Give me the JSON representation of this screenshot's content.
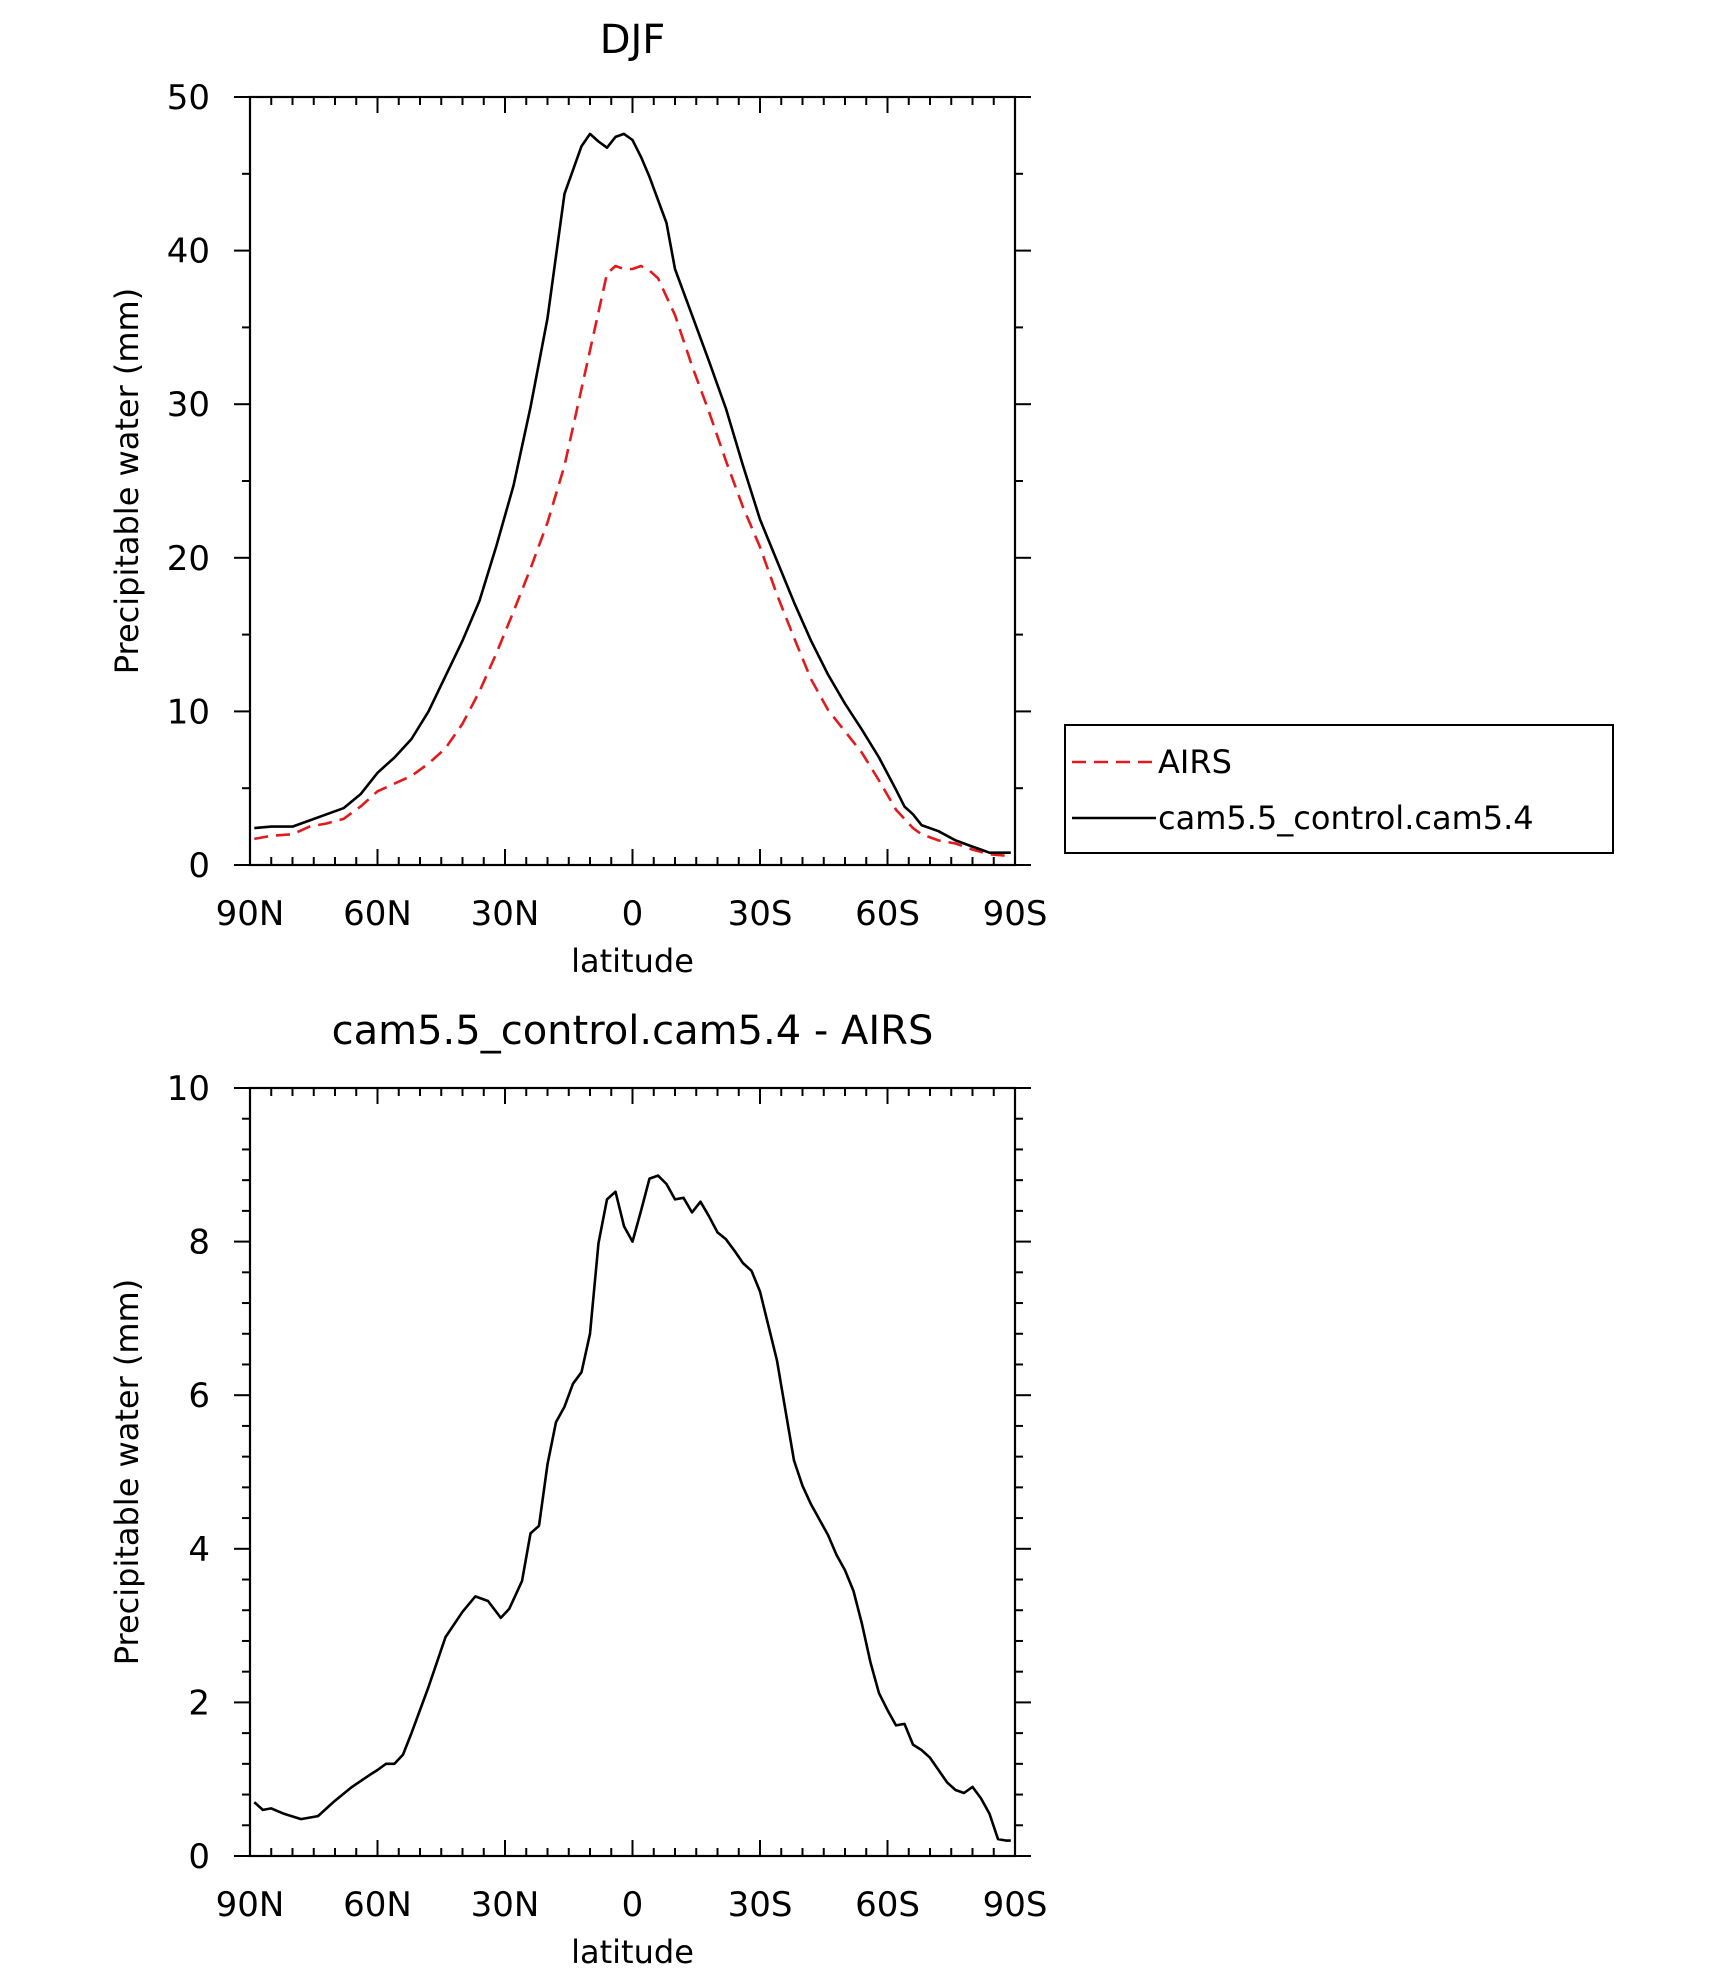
{
  "chart_data": [
    {
      "type": "line",
      "title": "DJF",
      "xlabel": "latitude",
      "ylabel": "Precipitable water (mm)",
      "xlim": [
        -90,
        90
      ],
      "ylim": [
        0,
        50
      ],
      "x_direction": "90N on left, 90S on right",
      "x_tick_labels": [
        "90N",
        "60N",
        "30N",
        "0",
        "30S",
        "60S",
        "90S"
      ],
      "y_tick_labels": [
        "0",
        "10",
        "20",
        "30",
        "40",
        "50"
      ],
      "grid": false,
      "legend": "right, outside plot",
      "series": [
        {
          "name": "AIRS",
          "color": "#e31a1c",
          "dash": "dashed",
          "x": [
            -89,
            -85,
            -80,
            -76,
            -72,
            -68,
            -64,
            -60,
            -56,
            -52,
            -48,
            -44,
            -40,
            -36,
            -32,
            -28,
            -24,
            -20,
            -16,
            -12,
            -8,
            -6,
            -4,
            -2,
            0,
            2,
            4,
            6,
            8,
            10,
            14,
            18,
            22,
            26,
            30,
            34,
            38,
            42,
            46,
            50,
            54,
            58,
            62,
            66,
            68,
            72,
            76,
            80,
            84,
            88,
            89
          ],
          "y": [
            1.7,
            1.9,
            2.0,
            2.5,
            2.7,
            3.0,
            3.8,
            4.8,
            5.3,
            5.8,
            6.6,
            7.6,
            9.2,
            11.3,
            13.8,
            16.5,
            19.3,
            22.3,
            26.0,
            31.0,
            36.0,
            38.5,
            39.0,
            38.8,
            38.8,
            39.0,
            38.7,
            38.2,
            37.0,
            35.8,
            32.5,
            29.5,
            26.3,
            23.3,
            20.7,
            17.6,
            14.8,
            12.1,
            10.1,
            8.7,
            7.3,
            5.5,
            3.6,
            2.4,
            2.0,
            1.6,
            1.4,
            1.0,
            0.7,
            0.6,
            0.6
          ]
        },
        {
          "name": "cam5.5_control.cam5.4",
          "color": "#000000",
          "dash": "solid",
          "x": [
            -89,
            -85,
            -80,
            -76,
            -72,
            -68,
            -64,
            -60,
            -56,
            -52,
            -48,
            -44,
            -40,
            -36,
            -32,
            -28,
            -24,
            -20,
            -16,
            -12,
            -10,
            -8,
            -6,
            -4,
            -2,
            0,
            2,
            4,
            6,
            8,
            10,
            14,
            18,
            22,
            26,
            30,
            34,
            38,
            42,
            46,
            50,
            54,
            58,
            62,
            64,
            66,
            68,
            72,
            76,
            80,
            82,
            84,
            86,
            88,
            89
          ],
          "y": [
            2.4,
            2.5,
            2.5,
            2.9,
            3.3,
            3.7,
            4.6,
            6.0,
            7.0,
            8.2,
            10.0,
            12.3,
            14.6,
            17.2,
            20.8,
            24.7,
            29.8,
            35.6,
            43.7,
            46.8,
            47.6,
            47.1,
            46.7,
            47.4,
            47.6,
            47.2,
            46.1,
            44.8,
            43.3,
            41.8,
            38.8,
            35.8,
            32.8,
            29.7,
            26.0,
            22.5,
            19.8,
            17.1,
            14.6,
            12.4,
            10.5,
            8.8,
            7.0,
            4.9,
            3.8,
            3.3,
            2.6,
            2.2,
            1.6,
            1.2,
            1.0,
            0.8,
            0.8,
            0.8,
            0.8
          ]
        }
      ]
    },
    {
      "type": "line",
      "title": "cam5.5_control.cam5.4 - AIRS",
      "xlabel": "latitude",
      "ylabel": "Precipitable water (mm)",
      "xlim": [
        -90,
        90
      ],
      "ylim": [
        0,
        10
      ],
      "x_direction": "90N on left, 90S on right",
      "x_tick_labels": [
        "90N",
        "60N",
        "30N",
        "0",
        "30S",
        "60S",
        "90S"
      ],
      "y_tick_labels": [
        "0",
        "2",
        "4",
        "6",
        "8",
        "10"
      ],
      "grid": false,
      "series": [
        {
          "color": "#000000",
          "dash": "solid",
          "x": [
            -89,
            -87,
            -85,
            -82,
            -78,
            -76,
            -74,
            -72,
            -70,
            -66,
            -62,
            -60,
            -58,
            -56,
            -54,
            -52,
            -48,
            -44,
            -40,
            -37,
            -34,
            -31,
            -29,
            -26,
            -24,
            -22,
            -20,
            -18,
            -16,
            -14,
            -12,
            -10,
            -8,
            -6,
            -4,
            -2,
            0,
            2,
            4,
            6,
            8,
            10,
            12,
            14,
            16,
            18,
            20,
            22,
            24,
            26,
            28,
            30,
            34,
            36,
            38,
            40,
            42,
            44,
            46,
            48,
            50,
            52,
            54,
            56,
            58,
            60,
            62,
            64,
            66,
            68,
            70,
            72,
            74,
            76,
            78,
            80,
            82,
            84,
            86,
            88,
            89
          ],
          "y": [
            0.7,
            0.6,
            0.62,
            0.55,
            0.48,
            0.5,
            0.52,
            0.62,
            0.72,
            0.9,
            1.05,
            1.12,
            1.2,
            1.2,
            1.32,
            1.6,
            2.2,
            2.85,
            3.18,
            3.38,
            3.32,
            3.1,
            3.22,
            3.58,
            4.2,
            4.3,
            5.1,
            5.65,
            5.85,
            6.15,
            6.3,
            6.8,
            7.98,
            8.55,
            8.65,
            8.2,
            8.0,
            8.4,
            8.82,
            8.86,
            8.75,
            8.55,
            8.57,
            8.38,
            8.52,
            8.33,
            8.12,
            8.03,
            7.88,
            7.72,
            7.62,
            7.35,
            6.45,
            5.8,
            5.15,
            4.82,
            4.58,
            4.38,
            4.18,
            3.92,
            3.72,
            3.45,
            3.02,
            2.52,
            2.12,
            1.9,
            1.7,
            1.72,
            1.45,
            1.38,
            1.28,
            1.12,
            0.96,
            0.86,
            0.82,
            0.9,
            0.75,
            0.55,
            0.22,
            0.2,
            0.2
          ]
        }
      ]
    }
  ]
}
